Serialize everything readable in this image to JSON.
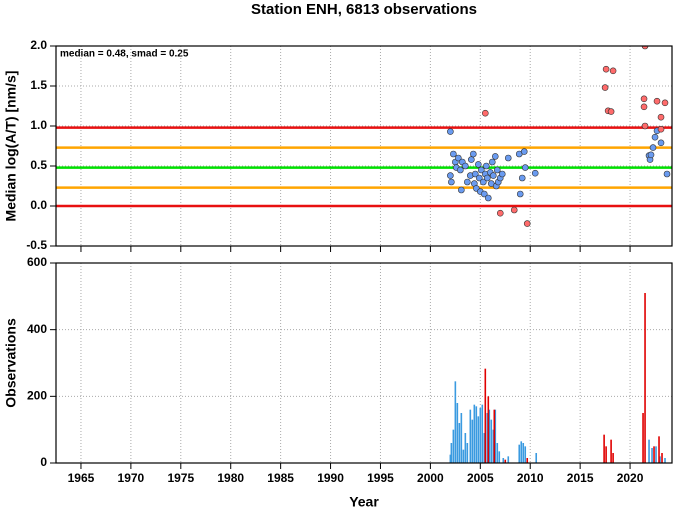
{
  "chart_data": [
    {
      "type": "scatter",
      "title": "Station ENH, 6813 observations",
      "ylabel": "Median log(A/T) [nm/s]",
      "annotation": "median = 0.48, smad = 0.25",
      "xlim": [
        1962.5,
        2024.2
      ],
      "xticks": [
        1965,
        1970,
        1975,
        1980,
        1985,
        1990,
        1995,
        2000,
        2005,
        2010,
        2015,
        2020
      ],
      "ylim": [
        -0.5,
        2.0
      ],
      "yticks": [
        -0.5,
        {
          "value": 0,
          "label": "0.0"
        },
        0.5,
        {
          "value": 1,
          "label": "1.0"
        },
        1.5,
        {
          "value": 2,
          "label": "2.0"
        }
      ],
      "grid": true,
      "reference_lines": [
        {
          "value": 0.98,
          "color": "#e81010"
        },
        {
          "value": 0.73,
          "color": "#ffa500"
        },
        {
          "value": 0.48,
          "color": "#00e000"
        },
        {
          "value": 0.23,
          "color": "#ffa500"
        },
        {
          "value": 0,
          "color": "#e81010"
        }
      ],
      "series": [
        {
          "color": "#6a9bf0",
          "x": [
            2002.0,
            2002.0,
            2002.1,
            2002.3,
            2002.5,
            2002.6,
            2002.8,
            2003.0,
            2003.1,
            2003.2,
            2003.5,
            2003.7,
            2004.0,
            2004.1,
            2004.3,
            2004.4,
            2004.5,
            2004.6,
            2004.8,
            2004.9,
            2005.0,
            2005.1,
            2005.3,
            2005.4,
            2005.5,
            2005.6,
            2005.7,
            2005.8,
            2006.0,
            2006.1,
            2006.2,
            2006.3,
            2006.5,
            2006.6,
            2006.7,
            2006.8,
            2007.0,
            2007.2,
            2007.8,
            2008.9,
            2009.0,
            2009.2,
            2009.4,
            2009.5,
            2010.5,
            2021.9,
            2022.0,
            2022.1,
            2022.3,
            2022.5,
            2022.7,
            2023.1,
            2023.7
          ],
          "values": [
            0.93,
            0.38,
            0.3,
            0.65,
            0.55,
            0.48,
            0.6,
            0.45,
            0.2,
            0.55,
            0.5,
            0.3,
            0.38,
            0.58,
            0.65,
            0.28,
            0.4,
            0.22,
            0.52,
            0.35,
            0.18,
            0.45,
            0.3,
            0.15,
            0.4,
            0.5,
            0.35,
            0.1,
            0.42,
            0.28,
            0.55,
            0.38,
            0.62,
            0.25,
            0.45,
            0.3,
            0.35,
            0.4,
            0.6,
            0.65,
            0.15,
            0.35,
            0.68,
            0.48,
            0.41,
            0.63,
            0.58,
            0.64,
            0.73,
            0.86,
            0.94,
            0.79,
            0.4
          ]
        },
        {
          "color": "#ff6b6b",
          "x": [
            2007.0,
            2008.4,
            2009.7,
            2005.5,
            2017.6,
            2018.3,
            2017.5,
            2017.8,
            2018.1,
            2021.5,
            2021.4,
            2021.4,
            2021.5,
            2022.7,
            2023.5,
            2023.1,
            2023.1
          ],
          "values": [
            -0.09,
            -0.05,
            -0.22,
            1.16,
            1.71,
            1.69,
            1.48,
            1.19,
            1.18,
            2.0,
            1.34,
            1.24,
            1.0,
            1.31,
            1.29,
            1.11,
            0.96
          ]
        }
      ]
    },
    {
      "type": "bar",
      "xlabel": "Year",
      "ylabel": "Observations",
      "xlim": [
        1962.5,
        2024.2
      ],
      "xticks": [
        1965,
        1970,
        1975,
        1980,
        1985,
        1990,
        1995,
        2000,
        2005,
        2010,
        2015,
        2020
      ],
      "ylim": [
        0,
        600
      ],
      "yticks": [
        0,
        200,
        400,
        600
      ],
      "grid": true,
      "series": [
        {
          "color": "#3a9ae0",
          "x": [
            2002.0,
            2002.1,
            2002.3,
            2002.5,
            2002.7,
            2002.9,
            2003.1,
            2003.3,
            2003.5,
            2003.7,
            2004.0,
            2004.2,
            2004.4,
            2004.6,
            2004.8,
            2005.0,
            2005.2,
            2005.4,
            2005.7,
            2005.9,
            2006.1,
            2006.3,
            2006.5,
            2006.7,
            2006.9,
            2007.3,
            2007.8,
            2008.9,
            2009.1,
            2009.3,
            2009.5,
            2010.6,
            2021.9,
            2022.2,
            2022.6,
            2023.0,
            2023.5
          ],
          "values": [
            25,
            60,
            100,
            245,
            180,
            120,
            150,
            40,
            90,
            60,
            160,
            130,
            175,
            170,
            140,
            165,
            175,
            90,
            150,
            160,
            130,
            100,
            160,
            60,
            35,
            15,
            20,
            55,
            65,
            60,
            50,
            30,
            70,
            45,
            50,
            20,
            15
          ]
        },
        {
          "color": "#e00000",
          "x": [
            2005.5,
            2005.8,
            2006.4,
            2007.5,
            2009.7,
            2017.4,
            2017.6,
            2018.1,
            2018.3,
            2021.3,
            2021.5,
            2022.4,
            2022.9,
            2023.2
          ],
          "values": [
            283,
            200,
            160,
            10,
            15,
            85,
            50,
            70,
            30,
            150,
            510,
            50,
            80,
            30
          ]
        }
      ]
    }
  ]
}
